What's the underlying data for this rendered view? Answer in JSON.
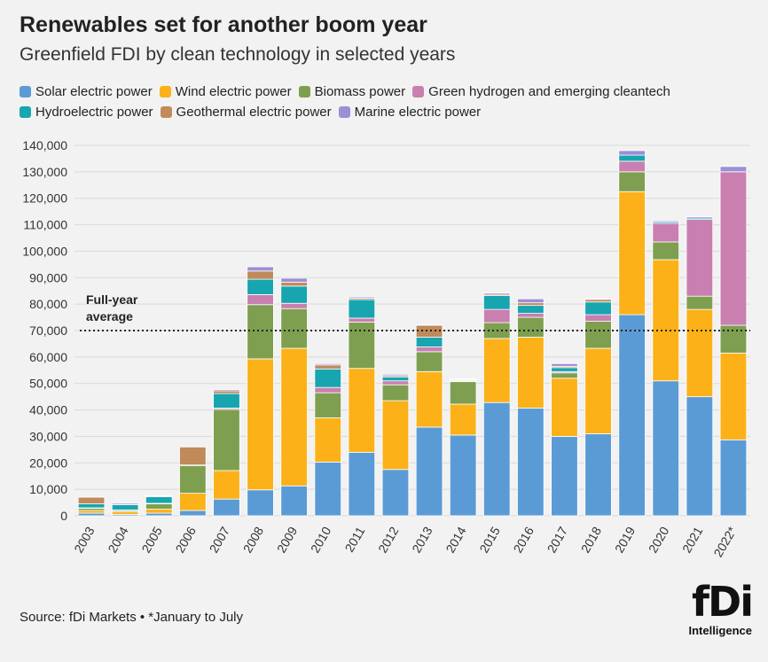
{
  "header": {
    "title": "Renewables set for another boom year",
    "subtitle": "Greenfield FDI by clean technology in selected years"
  },
  "footer": {
    "source": "Source: fDi Markets • *January to July",
    "logo_main": "fDi",
    "logo_sub": "Intelligence"
  },
  "chart_data": {
    "type": "bar",
    "stacked": true,
    "categories": [
      "2003",
      "2004",
      "2005",
      "2006",
      "2007",
      "2008",
      "2009",
      "2010",
      "2011",
      "2012",
      "2013",
      "2014",
      "2015",
      "2016",
      "2017",
      "2018",
      "2019",
      "2020",
      "2021",
      "2022*"
    ],
    "ylim": [
      0,
      140000
    ],
    "yticks": [
      0,
      10000,
      20000,
      30000,
      40000,
      50000,
      60000,
      70000,
      80000,
      90000,
      100000,
      110000,
      120000,
      130000,
      140000
    ],
    "ytick_labels": [
      "0",
      "10,000",
      "20,000",
      "30,000",
      "40,000",
      "50,000",
      "60,000",
      "70,000",
      "80,000",
      "90,000",
      "100,000",
      "110,000",
      "120,000",
      "130,000",
      "140,000"
    ],
    "grid": true,
    "legend_position": "top-left",
    "reference_line": {
      "value": 70000,
      "label_line1": "Full-year",
      "label_line2": "average",
      "style": "dotted"
    },
    "series": [
      {
        "name": "Solar electric power",
        "color": "#5b9bd5",
        "values": [
          1000,
          500,
          1000,
          2000,
          6300,
          9800,
          11300,
          20300,
          24000,
          17500,
          33500,
          30500,
          42800,
          40700,
          30000,
          31000,
          76000,
          51000,
          45000,
          28700
        ]
      },
      {
        "name": "Wind electric power",
        "color": "#fbb117",
        "values": [
          1000,
          1000,
          1500,
          6500,
          10800,
          49500,
          52000,
          16700,
          31700,
          26000,
          21000,
          11700,
          24200,
          26800,
          22000,
          32300,
          46500,
          45800,
          33000,
          32800
        ]
      },
      {
        "name": "Biomass power",
        "color": "#7e9f50",
        "values": [
          800,
          500,
          2000,
          10500,
          23100,
          20500,
          15000,
          9500,
          17500,
          6000,
          7500,
          8500,
          6000,
          7500,
          2000,
          10200,
          7500,
          6700,
          5000,
          10500
        ]
      },
      {
        "name": "Green hydrogen and emerging cleantech",
        "color": "#c97fb0",
        "values": [
          200,
          200,
          200,
          200,
          500,
          3800,
          2000,
          2000,
          1500,
          1500,
          1800,
          200,
          5000,
          1500,
          500,
          2500,
          4000,
          7000,
          29000,
          58000
        ]
      },
      {
        "name": "Hydroelectric power",
        "color": "#17a5b0",
        "values": [
          1500,
          2000,
          2500,
          0,
          5500,
          5800,
          6500,
          7000,
          7000,
          1500,
          3700,
          300,
          5200,
          3000,
          1500,
          4800,
          2300,
          500,
          500,
          0
        ]
      },
      {
        "name": "Geothermal electric power",
        "color": "#c08a5a",
        "values": [
          2500,
          0,
          200,
          6800,
          1000,
          3100,
          1500,
          1500,
          500,
          500,
          4500,
          300,
          500,
          1000,
          500,
          1000,
          0,
          0,
          0,
          0
        ]
      },
      {
        "name": "Marine electric power",
        "color": "#9b8fd6",
        "values": [
          0,
          500,
          200,
          0,
          500,
          1600,
          1500,
          500,
          500,
          500,
          200,
          200,
          500,
          1500,
          1000,
          200,
          1700,
          500,
          500,
          2000
        ]
      }
    ]
  }
}
